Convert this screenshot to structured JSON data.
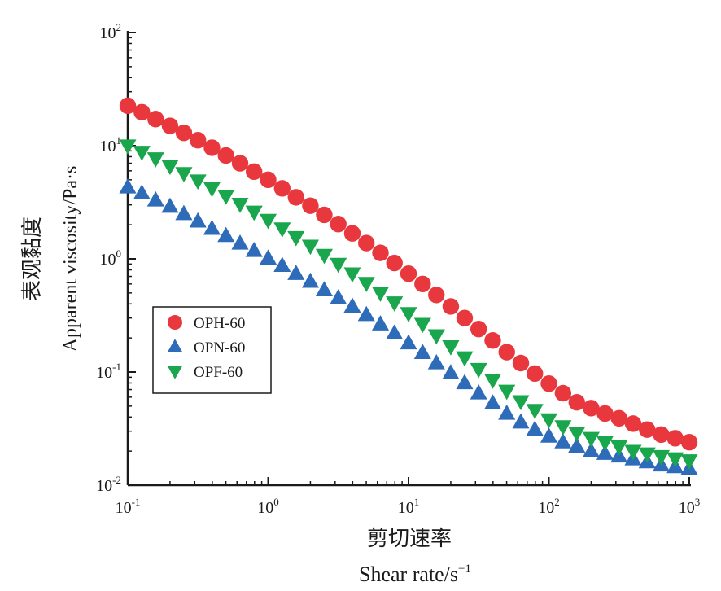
{
  "chart_data": {
    "type": "scatter",
    "scale": {
      "x": "log",
      "y": "log"
    },
    "xlim": [
      0.1,
      1000
    ],
    "ylim": [
      0.01,
      100
    ],
    "x_ticks": [
      {
        "value": 0.1,
        "base": "10",
        "exp": "-1"
      },
      {
        "value": 1,
        "base": "10",
        "exp": "0"
      },
      {
        "value": 10,
        "base": "10",
        "exp": "1"
      },
      {
        "value": 100,
        "base": "10",
        "exp": "2"
      },
      {
        "value": 1000,
        "base": "10",
        "exp": "3"
      }
    ],
    "y_ticks": [
      {
        "value": 0.01,
        "base": "10",
        "exp": "-2"
      },
      {
        "value": 0.1,
        "base": "10",
        "exp": "-1"
      },
      {
        "value": 1,
        "base": "10",
        "exp": "0"
      },
      {
        "value": 10,
        "base": "10",
        "exp": "1"
      },
      {
        "value": 100,
        "base": "10",
        "exp": "2"
      }
    ],
    "xlabel_cn": "剪切速率",
    "xlabel_en": "Shear rate/s",
    "xlabel_en_exp": "−1",
    "ylabel_cn": "表观黏度",
    "ylabel_en": "Apparent viscosity/Pa·s",
    "legend_position": "middle-left",
    "x": [
      0.1,
      0.126,
      0.158,
      0.2,
      0.251,
      0.316,
      0.398,
      0.501,
      0.631,
      0.794,
      1,
      1.26,
      1.58,
      2,
      2.51,
      3.16,
      3.98,
      5.01,
      6.31,
      7.94,
      10,
      12.6,
      15.8,
      20,
      25.1,
      31.6,
      39.8,
      50.1,
      63.1,
      79.4,
      100,
      126,
      158,
      200,
      251,
      316,
      398,
      501,
      631,
      794,
      1000
    ],
    "series": [
      {
        "name": "OPH-60",
        "marker": "circle",
        "color": "#e8383d",
        "values": [
          22.6,
          19.8,
          17.2,
          15.0,
          13.0,
          11.2,
          9.6,
          8.2,
          7.0,
          5.9,
          5.0,
          4.2,
          3.5,
          2.95,
          2.45,
          2.03,
          1.68,
          1.38,
          1.13,
          0.92,
          0.74,
          0.6,
          0.48,
          0.38,
          0.3,
          0.24,
          0.19,
          0.15,
          0.12,
          0.097,
          0.079,
          0.065,
          0.054,
          0.048,
          0.043,
          0.039,
          0.035,
          0.031,
          0.028,
          0.026,
          0.024
        ]
      },
      {
        "name": "OPN-60",
        "marker": "triangle-up",
        "color": "#2e6bb8",
        "values": [
          4.3,
          3.8,
          3.3,
          2.9,
          2.5,
          2.15,
          1.85,
          1.6,
          1.37,
          1.18,
          1.01,
          0.87,
          0.74,
          0.63,
          0.53,
          0.45,
          0.38,
          0.32,
          0.265,
          0.22,
          0.18,
          0.148,
          0.12,
          0.098,
          0.08,
          0.065,
          0.053,
          0.043,
          0.036,
          0.031,
          0.027,
          0.024,
          0.022,
          0.02,
          0.019,
          0.018,
          0.017,
          0.016,
          0.015,
          0.0145,
          0.014
        ]
      },
      {
        "name": "OPF-60",
        "marker": "triangle-down",
        "color": "#1aa64c",
        "values": [
          10.0,
          8.8,
          7.7,
          6.6,
          5.7,
          4.9,
          4.2,
          3.6,
          3.05,
          2.6,
          2.2,
          1.85,
          1.55,
          1.3,
          1.08,
          0.9,
          0.74,
          0.61,
          0.5,
          0.41,
          0.33,
          0.265,
          0.21,
          0.168,
          0.134,
          0.106,
          0.085,
          0.068,
          0.055,
          0.046,
          0.038,
          0.033,
          0.029,
          0.026,
          0.024,
          0.022,
          0.02,
          0.019,
          0.018,
          0.0172,
          0.0165
        ]
      }
    ]
  }
}
